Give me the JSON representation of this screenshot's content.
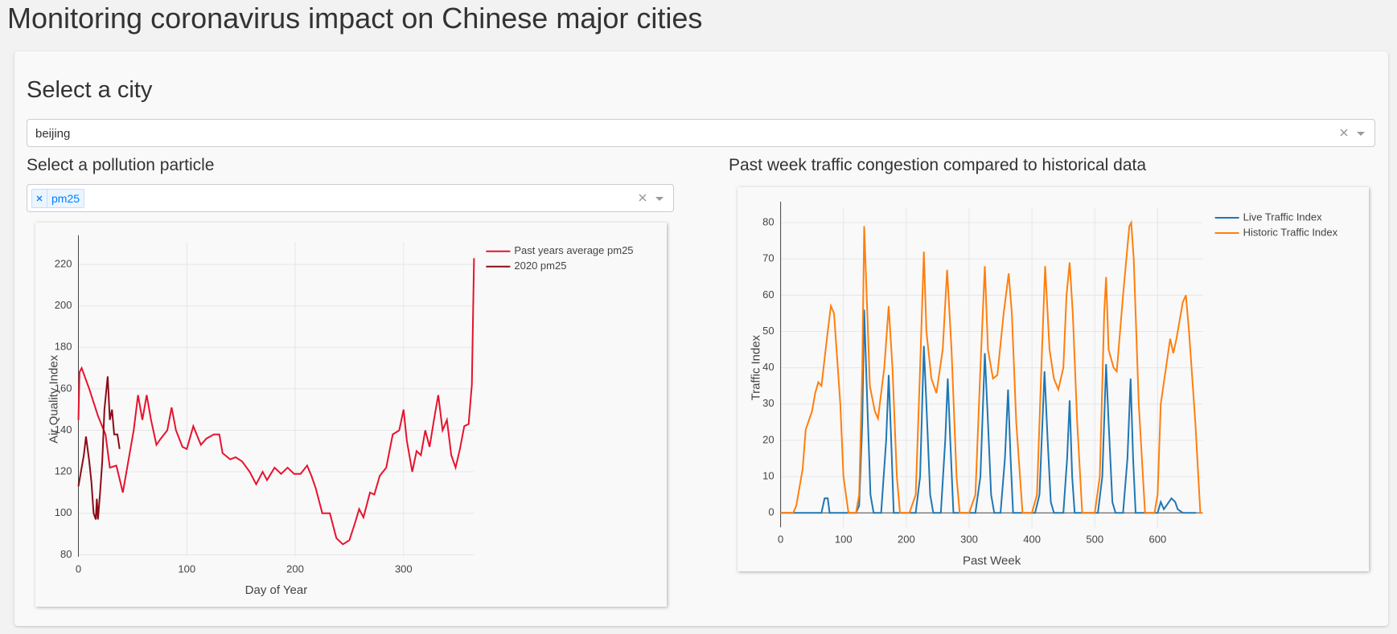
{
  "header": {
    "title": "Monitoring coronavirus impact on Chinese major cities"
  },
  "city_selector": {
    "label": "Select a city",
    "value": "beijing"
  },
  "particle_selector": {
    "label": "Select a pollution particle",
    "tags": [
      "pm25"
    ]
  },
  "chart_data": [
    {
      "type": "line",
      "x_label": "Day of Year",
      "y_label": "Air Quality Index",
      "xlim": [
        0,
        365
      ],
      "ylim": [
        79,
        231
      ],
      "xticks": [
        0,
        100,
        200,
        300
      ],
      "yticks": [
        80,
        100,
        120,
        140,
        160,
        180,
        200,
        220
      ],
      "grid": true,
      "legend": "right",
      "series": [
        {
          "name": "Past years average  pm25",
          "color": "#e8122d",
          "x": [
            0,
            1,
            3,
            10,
            18,
            25,
            29,
            35,
            41,
            47,
            51,
            55,
            59,
            63,
            67,
            72,
            76,
            82,
            86,
            90,
            96,
            100,
            106,
            113,
            118,
            125,
            130,
            133,
            140,
            145,
            151,
            158,
            164,
            170,
            174,
            181,
            187,
            193,
            199,
            205,
            211,
            215,
            219,
            225,
            232,
            238,
            244,
            250,
            255,
            259,
            263,
            269,
            273,
            278,
            284,
            290,
            296,
            300,
            303,
            308,
            312,
            316,
            320,
            324,
            328,
            332,
            336,
            340,
            344,
            348,
            352,
            356,
            360,
            363,
            365
          ],
          "values": [
            145,
            168,
            170,
            160,
            147,
            138,
            122,
            123,
            110,
            128,
            140,
            157,
            145,
            157,
            145,
            133,
            136,
            140,
            151,
            140,
            132,
            131,
            142,
            133,
            136,
            138,
            138,
            129,
            126,
            127,
            125,
            120,
            114,
            120,
            116,
            122,
            119,
            122,
            119,
            119,
            123,
            118,
            112,
            100,
            100,
            88,
            85,
            87,
            95,
            102,
            98,
            110,
            109,
            118,
            122,
            138,
            140,
            150,
            135,
            120,
            130,
            128,
            140,
            132,
            145,
            157,
            140,
            145,
            128,
            122,
            131,
            142,
            143,
            162,
            223
          ]
        },
        {
          "name": "2020   pm25",
          "color": "#8b0a16",
          "x": [
            0,
            5,
            7,
            10,
            12,
            14,
            16,
            17,
            18,
            20,
            22,
            24,
            27,
            29,
            31,
            33,
            36,
            38
          ],
          "values": [
            113,
            128,
            137,
            125,
            115,
            100,
            97,
            107,
            97,
            110,
            125,
            150,
            166,
            145,
            150,
            138,
            138,
            131
          ]
        }
      ]
    },
    {
      "type": "line",
      "title": "Past week traffic congestion compared to historical data",
      "x_label": "Past Week",
      "y_label": "Traffic Index",
      "xlim": [
        0,
        672
      ],
      "ylim": [
        -4,
        84
      ],
      "xticks": [
        0,
        100,
        200,
        300,
        400,
        500,
        600
      ],
      "yticks": [
        0,
        10,
        20,
        30,
        40,
        50,
        60,
        70,
        80
      ],
      "grid": true,
      "legend": "right",
      "series": [
        {
          "name": "Live Traffic Index",
          "color": "#1f77b4",
          "x": [
            0,
            65,
            70,
            75,
            78,
            120,
            125,
            130,
            133,
            138,
            143,
            148,
            160,
            168,
            172,
            176,
            180,
            215,
            222,
            228,
            232,
            238,
            243,
            255,
            262,
            266,
            270,
            275,
            310,
            318,
            325,
            330,
            335,
            340,
            350,
            357,
            362,
            366,
            370,
            405,
            412,
            420,
            425,
            430,
            435,
            450,
            456,
            460,
            464,
            468,
            505,
            512,
            518,
            522,
            528,
            533,
            545,
            552,
            557,
            561,
            565,
            600,
            605,
            610,
            618,
            622,
            628,
            632,
            640,
            661
          ],
          "values": [
            0,
            0,
            4,
            4,
            0,
            0,
            2,
            25,
            56,
            30,
            5,
            0,
            0,
            20,
            38,
            20,
            0,
            0,
            10,
            46,
            30,
            5,
            0,
            0,
            20,
            37,
            20,
            0,
            0,
            10,
            44,
            25,
            5,
            0,
            0,
            15,
            34,
            15,
            0,
            0,
            5,
            39,
            20,
            3,
            0,
            0,
            15,
            31,
            10,
            0,
            0,
            10,
            41,
            25,
            3,
            0,
            0,
            15,
            37,
            15,
            0,
            0,
            3,
            1,
            3,
            4,
            3,
            1,
            0,
            0
          ]
        },
        {
          "name": "Historic Traffic Index",
          "color": "#ff7f0e",
          "x": [
            0,
            20,
            25,
            35,
            40,
            50,
            55,
            60,
            65,
            75,
            80,
            85,
            95,
            100,
            108,
            120,
            125,
            130,
            133,
            138,
            142,
            150,
            155,
            165,
            172,
            178,
            185,
            190,
            205,
            215,
            222,
            228,
            232,
            240,
            248,
            258,
            265,
            272,
            280,
            285,
            300,
            310,
            318,
            325,
            330,
            338,
            345,
            355,
            363,
            368,
            375,
            385,
            400,
            408,
            415,
            421,
            428,
            435,
            442,
            450,
            455,
            460,
            465,
            472,
            480,
            500,
            508,
            515,
            518,
            522,
            530,
            535,
            545,
            555,
            558,
            562,
            570,
            580,
            595,
            600,
            605,
            615,
            620,
            625,
            630,
            640,
            645,
            650,
            660,
            668,
            671
          ],
          "values": [
            0,
            0,
            2,
            12,
            23,
            28,
            33,
            36,
            35,
            50,
            57,
            55,
            30,
            10,
            0,
            0,
            5,
            40,
            79,
            55,
            35,
            28,
            26,
            40,
            57,
            40,
            10,
            0,
            0,
            5,
            40,
            72,
            50,
            37,
            33,
            45,
            67,
            45,
            10,
            0,
            0,
            5,
            40,
            68,
            45,
            37,
            38,
            55,
            66,
            55,
            25,
            0,
            0,
            5,
            40,
            68,
            45,
            37,
            34,
            40,
            60,
            69,
            55,
            25,
            0,
            0,
            10,
            55,
            65,
            45,
            40,
            39,
            60,
            79,
            80,
            70,
            30,
            0,
            0,
            5,
            30,
            42,
            48,
            44,
            48,
            58,
            60,
            50,
            25,
            0,
            0
          ]
        }
      ]
    }
  ]
}
